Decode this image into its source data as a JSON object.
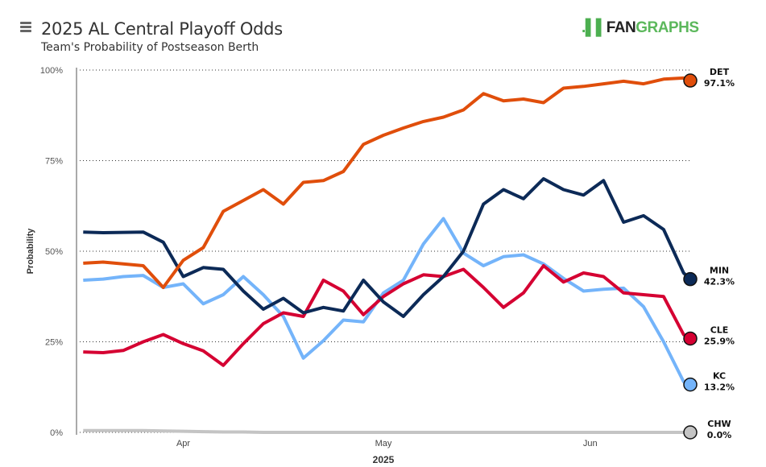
{
  "header": {
    "title": "2025 AL Central Playoff Odds",
    "subtitle": "Team's Probability of Postseason Berth",
    "menu_icon": "hamburger-menu-icon",
    "logo": {
      "mark": ".▌▌",
      "fan": "FAN",
      "graphs": "GRAPHS"
    }
  },
  "chart_data": {
    "type": "line",
    "title": "2025 AL Central Playoff Odds",
    "subtitle": "Team's Probability of Postseason Berth",
    "xlabel": "2025",
    "ylabel": "Probability",
    "xlim": [
      "2025-03-16",
      "2025-06-16"
    ],
    "ylim": [
      0,
      100
    ],
    "y_ticks": [
      "0%",
      "25%",
      "50%",
      "75%",
      "100%"
    ],
    "y_tick_values": [
      0,
      25,
      50,
      75,
      100
    ],
    "x_ticks": [
      {
        "label": "Apr",
        "date": "2025-04-01"
      },
      {
        "label": "May",
        "date": "2025-05-01"
      },
      {
        "label": "Jun",
        "date": "2025-06-01"
      }
    ],
    "grid": "horizontal dotted",
    "dates": [
      "2025-03-17",
      "2025-03-20",
      "2025-03-23",
      "2025-03-26",
      "2025-03-29",
      "2025-04-01",
      "2025-04-04",
      "2025-04-07",
      "2025-04-10",
      "2025-04-13",
      "2025-04-16",
      "2025-04-19",
      "2025-04-22",
      "2025-04-25",
      "2025-04-28",
      "2025-05-01",
      "2025-05-04",
      "2025-05-07",
      "2025-05-10",
      "2025-05-13",
      "2025-05-16",
      "2025-05-19",
      "2025-05-22",
      "2025-05-25",
      "2025-05-28",
      "2025-05-31",
      "2025-06-03",
      "2025-06-06",
      "2025-06-09",
      "2025-06-12",
      "2025-06-15",
      "2025-06-16"
    ],
    "series": [
      {
        "name": "DET",
        "final_label": "97.1%",
        "color": "#e04e0b",
        "values": [
          46.7,
          47,
          46.5,
          46,
          40,
          47.5,
          51,
          61,
          64,
          67,
          63,
          69,
          69.5,
          72,
          79.5,
          82,
          84,
          85.8,
          87,
          89,
          93.5,
          91.5,
          92,
          91,
          95,
          95.5,
          96.2,
          96.9,
          96.2,
          97.5,
          97.8,
          97.1
        ]
      },
      {
        "name": "MIN",
        "final_label": "42.3%",
        "color": "#0c2a57",
        "values": [
          55.3,
          55.1,
          55.2,
          55.3,
          52.5,
          43,
          45.5,
          45,
          39,
          34,
          37,
          33,
          34.5,
          33.5,
          42,
          36,
          32,
          38,
          43,
          50,
          63,
          67,
          64.5,
          70,
          67,
          65.5,
          69.5,
          58,
          59.8,
          56,
          44,
          42.3
        ]
      },
      {
        "name": "CLE",
        "final_label": "25.9%",
        "color": "#d50032",
        "values": [
          22.2,
          22,
          22.6,
          25,
          27,
          24.5,
          22.5,
          18.5,
          24.5,
          30,
          33,
          32,
          42,
          39,
          32.5,
          37.5,
          41,
          43.5,
          43,
          45,
          40,
          34.5,
          38.5,
          46,
          41.5,
          44,
          43,
          38.5,
          38,
          37.5,
          27,
          25.9
        ]
      },
      {
        "name": "KC",
        "final_label": "13.2%",
        "color": "#74b4fa",
        "values": [
          42,
          42.3,
          43,
          43.3,
          40,
          41,
          35.5,
          38,
          43,
          38,
          32,
          20.5,
          25.3,
          31,
          30.5,
          38.5,
          42,
          52,
          59,
          49.5,
          46,
          48.5,
          49,
          46.5,
          42.5,
          39,
          39.5,
          39.8,
          34.7,
          25,
          14,
          13.2
        ]
      },
      {
        "name": "CHW",
        "final_label": "0.0%",
        "color": "#c4c4c4",
        "values": [
          0.5,
          0.5,
          0.5,
          0.5,
          0.4,
          0.3,
          0.2,
          0.1,
          0.1,
          0,
          0,
          0,
          0,
          0,
          0,
          0,
          0,
          0,
          0,
          0,
          0,
          0,
          0,
          0,
          0,
          0,
          0,
          0,
          0,
          0,
          0,
          0
        ]
      }
    ]
  }
}
